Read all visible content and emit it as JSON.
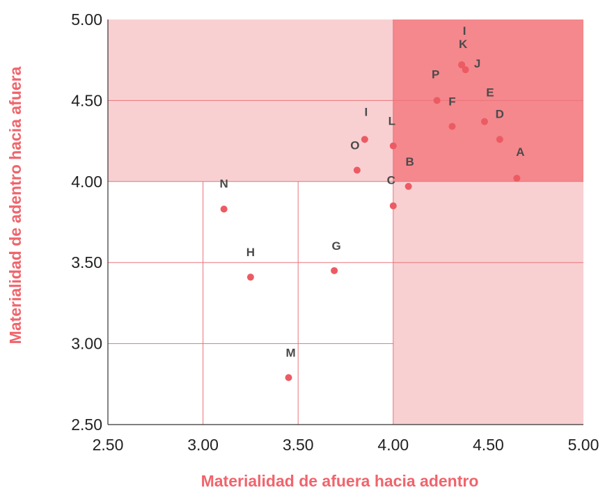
{
  "colors": {
    "accent": "#f0646c",
    "zone_light": "#f8d0d2",
    "zone_dark": "#f4888d",
    "grid": "#e8737a",
    "point": "#ec5b63"
  },
  "chart_data": {
    "type": "scatter",
    "xlabel": "Materialidad de afuera hacia adentro",
    "ylabel": "Materialidad de adentro hacia afuera",
    "xlim": [
      2.5,
      5.0
    ],
    "ylim": [
      2.5,
      5.0
    ],
    "x_ticks": [
      "2.50",
      "3.00",
      "3.50",
      "4.00",
      "4.50",
      "5.00"
    ],
    "y_ticks": [
      "2.50",
      "3.00",
      "3.50",
      "4.00",
      "4.50",
      "5.00"
    ],
    "zones": [
      {
        "x": [
          2.5,
          5.0
        ],
        "y": [
          4.0,
          5.0
        ],
        "shade": "light"
      },
      {
        "x": [
          4.0,
          5.0
        ],
        "y": [
          2.5,
          4.0
        ],
        "shade": "light"
      },
      {
        "x": [
          4.0,
          5.0
        ],
        "y": [
          4.0,
          5.0
        ],
        "shade": "dark"
      }
    ],
    "grid_lines": {
      "vertical": [
        {
          "x": 3.0,
          "y": [
            2.5,
            4.0
          ]
        },
        {
          "x": 3.5,
          "y": [
            2.5,
            4.0
          ]
        }
      ],
      "horizontal": [
        {
          "y": 3.0,
          "x": [
            2.5,
            4.0
          ]
        },
        {
          "y": 3.5,
          "x": [
            2.5,
            5.0
          ]
        },
        {
          "y": 4.5,
          "x": [
            2.5,
            5.0
          ]
        }
      ]
    },
    "points": [
      {
        "label": "A",
        "x": 4.65,
        "y": 4.02
      },
      {
        "label": "B",
        "x": 4.08,
        "y": 3.97
      },
      {
        "label": "C",
        "x": 4.0,
        "y": 3.85
      },
      {
        "label": "D",
        "x": 4.56,
        "y": 4.26
      },
      {
        "label": "E",
        "x": 4.48,
        "y": 4.37
      },
      {
        "label": "F",
        "x": 4.31,
        "y": 4.34
      },
      {
        "label": "G",
        "x": 3.69,
        "y": 3.45
      },
      {
        "label": "H",
        "x": 3.25,
        "y": 3.41
      },
      {
        "label": "I",
        "x": 4.36,
        "y": 4.72
      },
      {
        "label": "I",
        "x": 3.85,
        "y": 4.26
      },
      {
        "label": "J",
        "x": 4.38,
        "y": 4.69
      },
      {
        "label": "K",
        "x": 4.36,
        "y": 4.72
      },
      {
        "label": "L",
        "x": 4.0,
        "y": 4.22
      },
      {
        "label": "M",
        "x": 3.45,
        "y": 2.79
      },
      {
        "label": "N",
        "x": 3.11,
        "y": 3.83
      },
      {
        "label": "O",
        "x": 3.81,
        "y": 4.07
      },
      {
        "label": "P",
        "x": 4.23,
        "y": 4.5
      }
    ]
  }
}
